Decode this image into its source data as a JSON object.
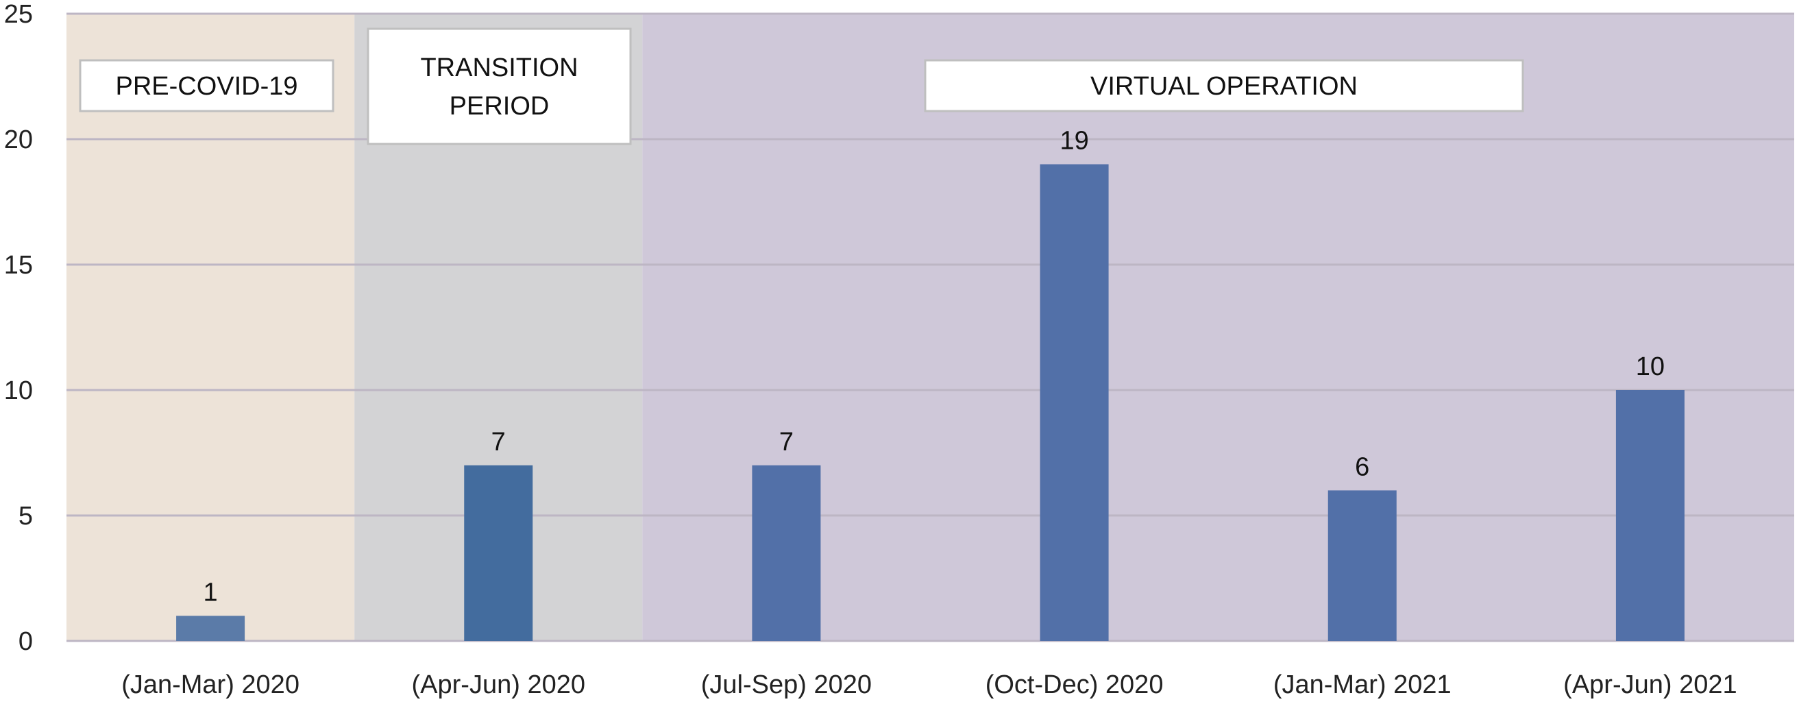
{
  "chart_data": {
    "type": "bar",
    "categories": [
      "(Jan-Mar) 2020",
      "(Apr-Jun) 2020",
      "(Jul-Sep) 2020",
      "(Oct-Dec) 2020",
      "(Jan-Mar) 2021",
      "(Apr-Jun) 2021"
    ],
    "values": [
      1,
      7,
      7,
      19,
      6,
      10
    ],
    "data_labels": [
      "1",
      "7",
      "7",
      "19",
      "6",
      "10"
    ],
    "title": "",
    "xlabel": "",
    "ylabel": "",
    "ylim": [
      0,
      25
    ],
    "yticks": [
      0,
      5,
      10,
      15,
      20,
      25
    ],
    "grid": true,
    "legend": "none",
    "bar_colors": [
      "#5B7BA8",
      "#436C9E",
      "#5270A8",
      "#5270A8",
      "#5270A8",
      "#5270A8"
    ],
    "periods": [
      {
        "lines": [
          "PRE-COVID-19"
        ],
        "categories_span": [
          0,
          0
        ],
        "background": "#EDE3D8"
      },
      {
        "lines": [
          "TRANSITION",
          "PERIOD"
        ],
        "categories_span": [
          1,
          1
        ],
        "background": "#D3D3D5"
      },
      {
        "lines": [
          "VIRTUAL OPERATION"
        ],
        "categories_span": [
          2,
          5
        ],
        "background": "#CFC8D9"
      }
    ],
    "gridline_color": "#BDB6C4"
  }
}
